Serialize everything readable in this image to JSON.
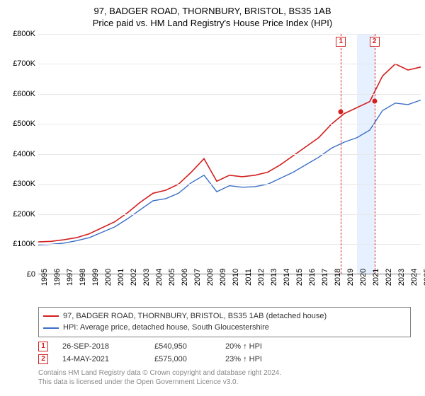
{
  "title_line1": "97, BADGER ROAD, THORNBURY, BRISTOL, BS35 1AB",
  "title_line2": "Price paid vs. HM Land Registry's House Price Index (HPI)",
  "chart": {
    "type": "line",
    "x_years": [
      1995,
      1996,
      1997,
      1998,
      1999,
      2000,
      2001,
      2002,
      2003,
      2004,
      2005,
      2006,
      2007,
      2008,
      2009,
      2010,
      2011,
      2012,
      2013,
      2014,
      2015,
      2016,
      2017,
      2018,
      2019,
      2020,
      2021,
      2022,
      2023,
      2024,
      2025
    ],
    "x_min": 1995,
    "x_max": 2025,
    "y_min": 0,
    "y_max": 800000,
    "y_ticks": [
      0,
      100000,
      200000,
      300000,
      400000,
      500000,
      600000,
      700000,
      800000
    ],
    "y_tick_labels": [
      "£0",
      "£100K",
      "£200K",
      "£300K",
      "£400K",
      "£500K",
      "£600K",
      "£700K",
      "£800K"
    ],
    "grid_color": "#e8e8e8",
    "axis_color": "#808080",
    "background_color": "#ffffff",
    "series": [
      {
        "name": "subject",
        "label": "97, BADGER ROAD, THORNBURY, BRISTOL, BS35 1AB (detached house)",
        "color": "#d32020",
        "line_width": 1.6,
        "values": [
          108000,
          110000,
          115000,
          122000,
          135000,
          155000,
          175000,
          205000,
          240000,
          270000,
          280000,
          300000,
          340000,
          385000,
          310000,
          330000,
          325000,
          330000,
          340000,
          365000,
          395000,
          425000,
          455000,
          500000,
          535000,
          555000,
          575000,
          660000,
          700000,
          680000,
          690000
        ]
      },
      {
        "name": "hpi",
        "label": "HPI: Average price, detached house, South Gloucestershire",
        "color": "#3a6fc7",
        "line_width": 1.4,
        "values": [
          98000,
          100000,
          104000,
          112000,
          122000,
          140000,
          158000,
          185000,
          215000,
          245000,
          252000,
          270000,
          305000,
          330000,
          275000,
          295000,
          290000,
          292000,
          300000,
          320000,
          340000,
          365000,
          390000,
          420000,
          440000,
          455000,
          480000,
          545000,
          570000,
          565000,
          580000
        ]
      }
    ],
    "highlight_band": {
      "x_start": 2020,
      "x_end": 2021.4,
      "color": "#e6f0ff"
    },
    "sale_markers": [
      {
        "index": "1",
        "year_frac": 2018.74,
        "price": 540950,
        "color": "#d32020"
      },
      {
        "index": "2",
        "year_frac": 2021.37,
        "price": 575000,
        "color": "#d32020"
      }
    ]
  },
  "legend": {
    "border_color": "#808080",
    "items": [
      {
        "color": "#d32020",
        "text": "97, BADGER ROAD, THORNBURY, BRISTOL, BS35 1AB (detached house)"
      },
      {
        "color": "#3a6fc7",
        "text": "HPI: Average price, detached house, South Gloucestershire"
      }
    ]
  },
  "sales": [
    {
      "marker": "1",
      "marker_color": "#d32020",
      "date": "26-SEP-2018",
      "price": "£540,950",
      "pct": "20% ↑ HPI"
    },
    {
      "marker": "2",
      "marker_color": "#d32020",
      "date": "14-MAY-2021",
      "price": "£575,000",
      "pct": "23% ↑ HPI"
    }
  ],
  "footer": {
    "line1": "Contains HM Land Registry data © Crown copyright and database right 2024.",
    "line2": "This data is licensed under the Open Government Licence v3.0."
  }
}
